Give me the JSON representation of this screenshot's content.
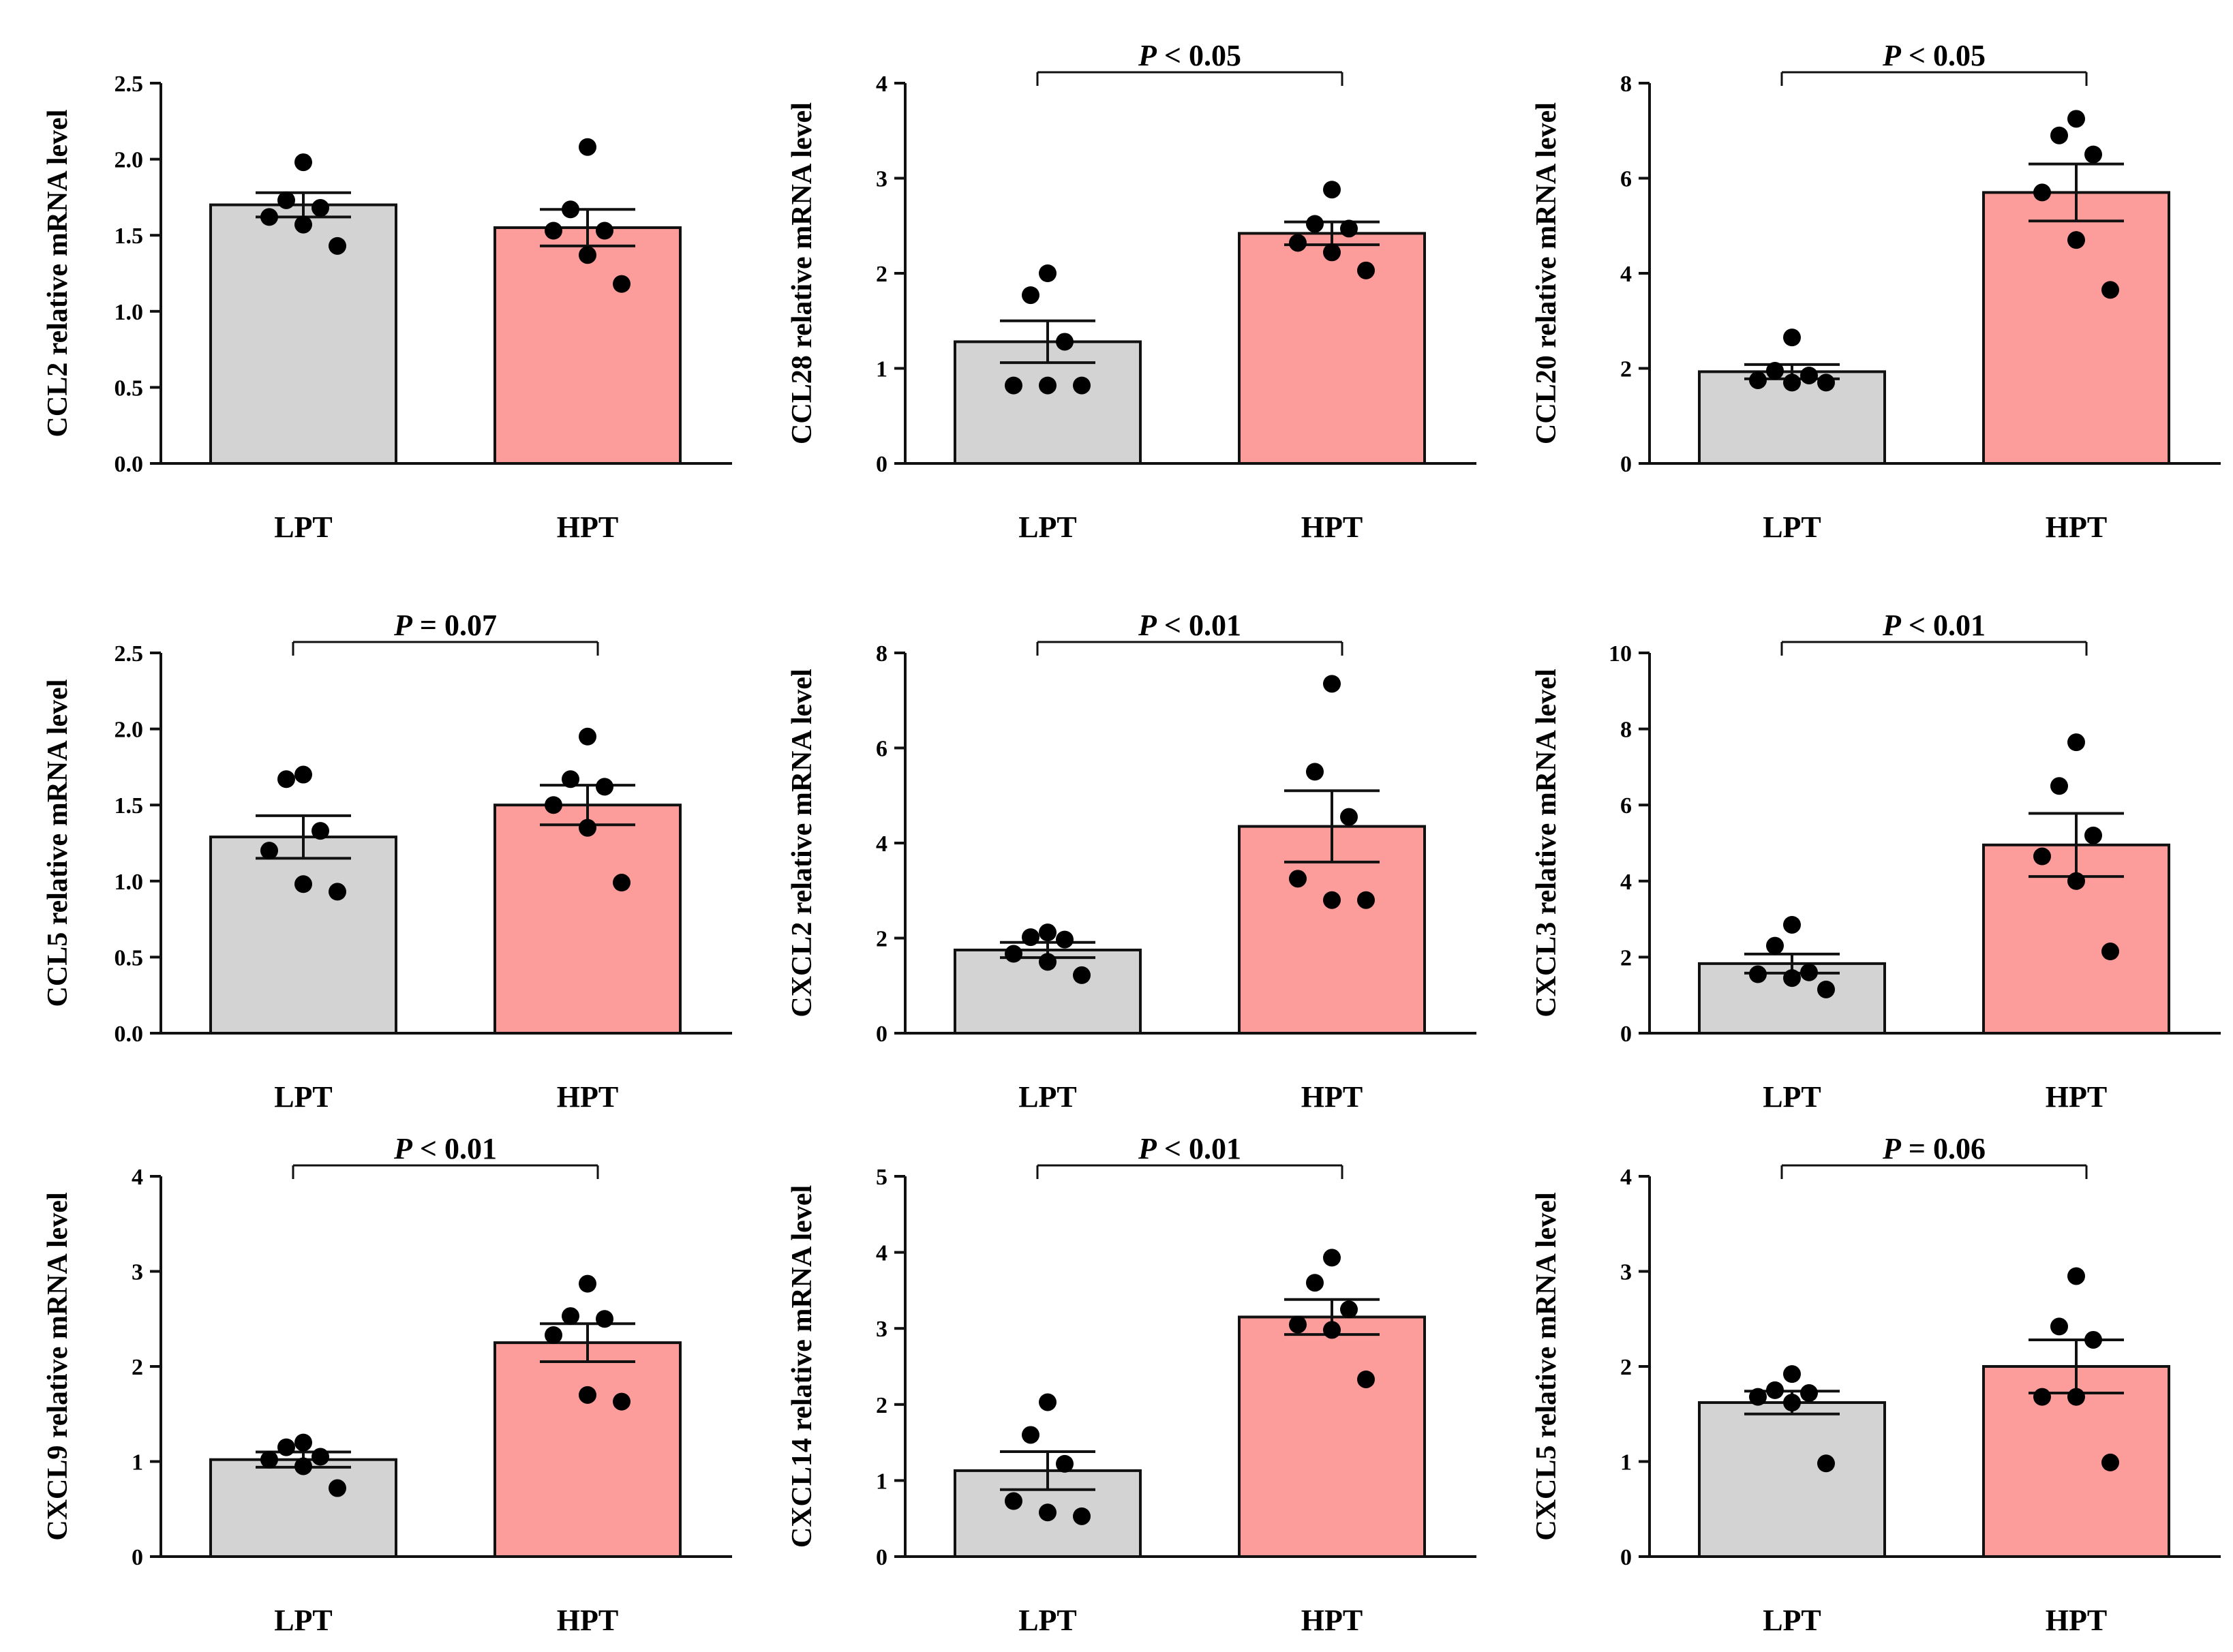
{
  "chart_data": [
    {
      "type": "bar",
      "ylabel": "CCL2 relative mRNA level",
      "categories": [
        "LPT",
        "HPT"
      ],
      "values": [
        1.7,
        1.55
      ],
      "sem": [
        0.08,
        0.12
      ],
      "points": [
        [
          1.98,
          1.73,
          1.68,
          1.62,
          1.57,
          1.43
        ],
        [
          2.08,
          1.67,
          1.53,
          1.53,
          1.37,
          1.18
        ]
      ],
      "ylim": [
        0,
        2.5
      ],
      "yticks": [
        "0.0",
        "0.5",
        "1.0",
        "1.5",
        "2.0",
        "2.5"
      ],
      "significance": null
    },
    {
      "type": "bar",
      "ylabel": "CCL28 relative mRNA level",
      "categories": [
        "LPT",
        "HPT"
      ],
      "values": [
        1.28,
        2.42
      ],
      "sem": [
        0.22,
        0.12
      ],
      "points": [
        [
          2.0,
          1.77,
          1.28,
          0.82,
          0.82,
          0.82
        ],
        [
          2.88,
          2.52,
          2.47,
          2.32,
          2.22,
          2.03
        ]
      ],
      "ylim": [
        0,
        4
      ],
      "yticks": [
        "0",
        "1",
        "2",
        "3",
        "4"
      ],
      "significance": {
        "prefix": "P",
        "text": " < 0.05"
      }
    },
    {
      "type": "bar",
      "ylabel": "CCL20 relative mRNA level",
      "categories": [
        "LPT",
        "HPT"
      ],
      "values": [
        1.93,
        5.7
      ],
      "sem": [
        0.15,
        0.6
      ],
      "points": [
        [
          2.65,
          1.95,
          1.85,
          1.75,
          1.7,
          1.7
        ],
        [
          7.25,
          6.9,
          6.5,
          5.7,
          4.7,
          3.65
        ]
      ],
      "ylim": [
        0,
        8
      ],
      "yticks": [
        "0",
        "2",
        "4",
        "6",
        "8"
      ],
      "significance": {
        "prefix": "P",
        "text": " < 0.05"
      }
    },
    {
      "type": "bar",
      "ylabel": "CCL5 relative mRNA level",
      "categories": [
        "LPT",
        "HPT"
      ],
      "values": [
        1.29,
        1.5
      ],
      "sem": [
        0.14,
        0.13
      ],
      "points": [
        [
          1.7,
          1.67,
          1.33,
          1.2,
          0.98,
          0.93
        ],
        [
          1.95,
          1.67,
          1.62,
          1.5,
          1.35,
          0.99
        ]
      ],
      "ylim": [
        0,
        2.5
      ],
      "yticks": [
        "0.0",
        "0.5",
        "1.0",
        "1.5",
        "2.0",
        "2.5"
      ],
      "significance": {
        "prefix": "P",
        "text": " = 0.07"
      }
    },
    {
      "type": "bar",
      "ylabel": "CXCL2 relative mRNA level",
      "categories": [
        "LPT",
        "HPT"
      ],
      "values": [
        1.75,
        4.35
      ],
      "sem": [
        0.16,
        0.75
      ],
      "points": [
        [
          2.12,
          2.02,
          1.97,
          1.67,
          1.5,
          1.22
        ],
        [
          7.35,
          5.5,
          4.55,
          3.25,
          2.8,
          2.8
        ]
      ],
      "ylim": [
        0,
        8
      ],
      "yticks": [
        "0",
        "2",
        "4",
        "6",
        "8"
      ],
      "significance": {
        "prefix": "P",
        "text": " < 0.01"
      }
    },
    {
      "type": "bar",
      "ylabel": "CXCL3 relative mRNA level",
      "categories": [
        "LPT",
        "HPT"
      ],
      "values": [
        1.83,
        4.95
      ],
      "sem": [
        0.25,
        0.83
      ],
      "points": [
        [
          2.85,
          2.3,
          1.6,
          1.55,
          1.45,
          1.15
        ],
        [
          7.65,
          6.5,
          5.2,
          4.65,
          4.0,
          2.15
        ]
      ],
      "ylim": [
        0,
        10
      ],
      "yticks": [
        "0",
        "2",
        "4",
        "6",
        "8",
        "10"
      ],
      "significance": {
        "prefix": "P",
        "text": " < 0.01"
      }
    },
    {
      "type": "bar",
      "ylabel": "CXCL9 relative mRNA level",
      "categories": [
        "LPT",
        "HPT"
      ],
      "values": [
        1.02,
        2.25
      ],
      "sem": [
        0.08,
        0.2
      ],
      "points": [
        [
          1.2,
          1.15,
          1.05,
          1.02,
          0.95,
          0.72
        ],
        [
          2.87,
          2.53,
          2.5,
          2.33,
          1.7,
          1.63
        ]
      ],
      "ylim": [
        0,
        4
      ],
      "yticks": [
        "0",
        "1",
        "2",
        "3",
        "4"
      ],
      "significance": {
        "prefix": "P",
        "text": " < 0.01"
      }
    },
    {
      "type": "bar",
      "ylabel": "CXCL14 relative mRNA level",
      "categories": [
        "LPT",
        "HPT"
      ],
      "values": [
        1.13,
        3.15
      ],
      "sem": [
        0.25,
        0.23
      ],
      "points": [
        [
          2.03,
          1.6,
          1.22,
          0.73,
          0.58,
          0.53
        ],
        [
          3.93,
          3.6,
          3.25,
          3.05,
          2.98,
          2.33
        ]
      ],
      "ylim": [
        0,
        5
      ],
      "yticks": [
        "0",
        "1",
        "2",
        "3",
        "4",
        "5"
      ],
      "significance": {
        "prefix": "P",
        "text": " < 0.01"
      }
    },
    {
      "type": "bar",
      "ylabel": "CXCL5 relative mRNA level",
      "categories": [
        "LPT",
        "HPT"
      ],
      "values": [
        1.62,
        2.0
      ],
      "sem": [
        0.12,
        0.28
      ],
      "points": [
        [
          1.92,
          1.75,
          1.72,
          1.68,
          1.62,
          0.98
        ],
        [
          2.95,
          2.42,
          2.28,
          1.68,
          1.68,
          0.99
        ]
      ],
      "ylim": [
        0,
        4
      ],
      "yticks": [
        "0",
        "1",
        "2",
        "3",
        "4"
      ],
      "significance": {
        "prefix": "P",
        "text": " = 0.06"
      }
    }
  ],
  "colors": {
    "lpt_bar": "#d3d3d3",
    "hpt_bar": "#fc9d9b",
    "stroke": "#111111",
    "point": "#000000"
  }
}
